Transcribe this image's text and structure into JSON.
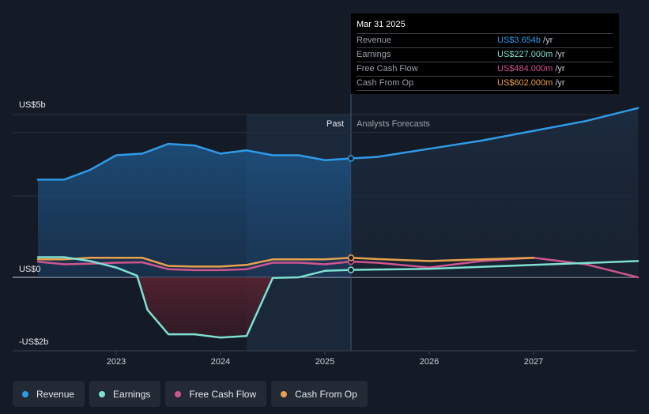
{
  "chart_data": {
    "type": "area",
    "y_unit_labels": [
      "US$5b",
      "US$0",
      "-US$2b"
    ],
    "ylim": [
      -2.0,
      5.0
    ],
    "x_ticks": [
      "2023",
      "2024",
      "2025",
      "2026",
      "2027"
    ],
    "divider_labels": {
      "past": "Past",
      "forecast": "Analysts Forecasts"
    },
    "divider_x": 2025.25,
    "series": [
      {
        "name": "Revenue",
        "color": "#2f9be8",
        "x": [
          2022.25,
          2022.5,
          2022.75,
          2023.0,
          2023.25,
          2023.5,
          2023.75,
          2024.0,
          2024.25,
          2024.5,
          2024.75,
          2025.0,
          2025.25,
          2025.5,
          2026.0,
          2026.5,
          2027.0,
          2027.5,
          2028.0
        ],
        "values": [
          3.0,
          3.0,
          3.3,
          3.75,
          3.8,
          4.1,
          4.05,
          3.8,
          3.9,
          3.75,
          3.75,
          3.6,
          3.654,
          3.7,
          3.95,
          4.2,
          4.5,
          4.8,
          5.2
        ]
      },
      {
        "name": "Earnings",
        "color": "#7fe0d2",
        "x": [
          2022.25,
          2022.5,
          2022.75,
          2023.0,
          2023.2,
          2023.3,
          2023.5,
          2023.75,
          2024.0,
          2024.25,
          2024.5,
          2024.75,
          2025.0,
          2025.25,
          2025.5,
          2026.0,
          2026.5,
          2027.0,
          2027.5,
          2028.0
        ],
        "values": [
          0.62,
          0.62,
          0.5,
          0.3,
          0.05,
          -1.0,
          -1.75,
          -1.75,
          -1.85,
          -1.8,
          -0.02,
          0.0,
          0.2,
          0.227,
          0.24,
          0.26,
          0.32,
          0.38,
          0.44,
          0.5
        ]
      },
      {
        "name": "Free Cash Flow",
        "color": "#d0558f",
        "x": [
          2022.25,
          2022.5,
          2022.75,
          2023.0,
          2023.25,
          2023.5,
          2023.75,
          2024.0,
          2024.25,
          2024.5,
          2024.75,
          2025.0,
          2025.25,
          2025.5,
          2026.0,
          2026.5,
          2027.0,
          2027.5,
          2028.0
        ],
        "values": [
          0.48,
          0.4,
          0.42,
          0.45,
          0.46,
          0.25,
          0.22,
          0.22,
          0.25,
          0.45,
          0.45,
          0.4,
          0.484,
          0.45,
          0.3,
          0.5,
          0.6,
          0.4,
          0.0
        ]
      },
      {
        "name": "Cash From Op",
        "color": "#e8a24e",
        "x": [
          2022.25,
          2022.5,
          2022.75,
          2023.0,
          2023.25,
          2023.5,
          2023.75,
          2024.0,
          2024.25,
          2024.5,
          2024.75,
          2025.0,
          2025.25,
          2025.5,
          2026.0,
          2026.5,
          2027.0
        ],
        "values": [
          0.55,
          0.55,
          0.6,
          0.6,
          0.6,
          0.35,
          0.33,
          0.33,
          0.38,
          0.55,
          0.55,
          0.55,
          0.602,
          0.56,
          0.5,
          0.55,
          0.6
        ]
      }
    ]
  },
  "tooltip": {
    "date": "Mar 31 2025",
    "rows": [
      {
        "label": "Revenue",
        "value": "US$3.654b",
        "unit": "/yr",
        "color": "#2f9be8"
      },
      {
        "label": "Earnings",
        "value": "US$227.000m",
        "unit": "/yr",
        "color": "#7fe0d2"
      },
      {
        "label": "Free Cash Flow",
        "value": "US$484.000m",
        "unit": "/yr",
        "color": "#d0558f"
      },
      {
        "label": "Cash From Op",
        "value": "US$602.000m",
        "unit": "/yr",
        "color": "#e8a24e"
      }
    ]
  },
  "legend": [
    {
      "label": "Revenue",
      "color": "#2f9be8"
    },
    {
      "label": "Earnings",
      "color": "#7fe0d2"
    },
    {
      "label": "Free Cash Flow",
      "color": "#d0558f"
    },
    {
      "label": "Cash From Op",
      "color": "#e8a24e"
    }
  ]
}
